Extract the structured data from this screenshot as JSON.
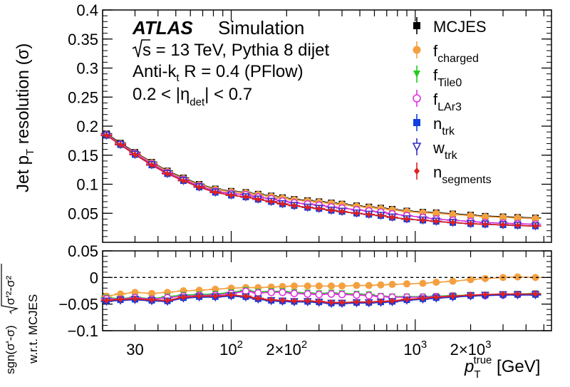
{
  "chart_data": [
    {
      "panel": "main",
      "type": "scatter",
      "xscale": "log",
      "xlim": [
        20,
        5500
      ],
      "ylim": [
        0.0,
        0.4
      ],
      "ylabel": "Jet p_T resolution (σ)",
      "yticks": [
        "0.4",
        "0.35",
        "0.3",
        "0.25",
        "0.2",
        "0.15",
        "0.1",
        "0.05"
      ],
      "yticks_vals": [
        0.4,
        0.35,
        0.3,
        0.25,
        0.2,
        0.15,
        0.1,
        0.05
      ],
      "x": [
        21,
        25,
        30,
        37,
        45,
        55,
        67,
        82,
        100,
        120,
        140,
        165,
        190,
        220,
        260,
        300,
        350,
        400,
        480,
        560,
        650,
        750,
        900,
        1100,
        1300,
        1600,
        2000,
        2400,
        3000,
        3600,
        4500
      ],
      "series": [
        {
          "name": "MCJES",
          "color": "#000000",
          "marker": "square",
          "values": [
            0.187,
            0.171,
            0.155,
            0.138,
            0.123,
            0.111,
            0.1,
            0.092,
            0.088,
            0.086,
            0.083,
            0.08,
            0.077,
            0.074,
            0.072,
            0.07,
            0.068,
            0.066,
            0.063,
            0.061,
            0.059,
            0.057,
            0.054,
            0.052,
            0.051,
            0.049,
            0.047,
            0.045,
            0.044,
            0.043,
            0.042
          ]
        },
        {
          "name": "f_charged",
          "color": "#f4a040",
          "marker": "circle",
          "values": [
            0.186,
            0.17,
            0.154,
            0.137,
            0.122,
            0.11,
            0.099,
            0.091,
            0.087,
            0.085,
            0.082,
            0.079,
            0.076,
            0.073,
            0.071,
            0.069,
            0.067,
            0.065,
            0.062,
            0.06,
            0.058,
            0.056,
            0.053,
            0.051,
            0.05,
            0.048,
            0.046,
            0.044,
            0.043,
            0.042,
            0.041
          ]
        },
        {
          "name": "f_Tile0",
          "color": "#22cc22",
          "marker": "triangle-down",
          "values": [
            0.185,
            0.169,
            0.153,
            0.135,
            0.12,
            0.108,
            0.097,
            0.088,
            0.084,
            0.082,
            0.078,
            0.075,
            0.071,
            0.068,
            0.066,
            0.064,
            0.061,
            0.059,
            0.056,
            0.054,
            0.052,
            0.049,
            0.046,
            0.043,
            0.04,
            0.038,
            0.036,
            0.034,
            0.033,
            0.032,
            0.031
          ]
        },
        {
          "name": "f_LAr3",
          "color": "#e030e0",
          "marker": "circle-open",
          "values": [
            0.185,
            0.169,
            0.153,
            0.135,
            0.12,
            0.108,
            0.097,
            0.088,
            0.084,
            0.082,
            0.078,
            0.075,
            0.071,
            0.068,
            0.066,
            0.064,
            0.061,
            0.059,
            0.056,
            0.054,
            0.052,
            0.049,
            0.046,
            0.043,
            0.04,
            0.038,
            0.036,
            0.034,
            0.033,
            0.032,
            0.031
          ]
        },
        {
          "name": "n_trk",
          "color": "#1040e0",
          "marker": "square",
          "values": [
            0.184,
            0.168,
            0.151,
            0.133,
            0.118,
            0.106,
            0.095,
            0.086,
            0.081,
            0.078,
            0.074,
            0.07,
            0.066,
            0.063,
            0.06,
            0.058,
            0.055,
            0.053,
            0.05,
            0.048,
            0.046,
            0.043,
            0.04,
            0.038,
            0.036,
            0.034,
            0.032,
            0.031,
            0.03,
            0.029,
            0.028
          ]
        },
        {
          "name": "w_trk",
          "color": "#3030c0",
          "marker": "triangle-down-open",
          "values": [
            0.184,
            0.168,
            0.151,
            0.133,
            0.118,
            0.106,
            0.095,
            0.086,
            0.081,
            0.078,
            0.074,
            0.07,
            0.066,
            0.063,
            0.06,
            0.058,
            0.055,
            0.053,
            0.05,
            0.048,
            0.046,
            0.043,
            0.04,
            0.038,
            0.036,
            0.034,
            0.032,
            0.031,
            0.03,
            0.029,
            0.028
          ]
        },
        {
          "name": "n_segments",
          "color": "#e02020",
          "marker": "diamond",
          "values": [
            0.184,
            0.168,
            0.151,
            0.133,
            0.118,
            0.106,
            0.095,
            0.086,
            0.081,
            0.078,
            0.074,
            0.07,
            0.066,
            0.063,
            0.06,
            0.058,
            0.055,
            0.053,
            0.05,
            0.048,
            0.046,
            0.043,
            0.04,
            0.038,
            0.036,
            0.034,
            0.032,
            0.031,
            0.03,
            0.029,
            0.028
          ]
        }
      ]
    },
    {
      "panel": "ratio",
      "type": "scatter",
      "xscale": "log",
      "xlim": [
        20,
        5500
      ],
      "ylim": [
        -0.1,
        0.05
      ],
      "ylabel_1": "sgn(σ'-σ)",
      "ylabel_2": "√(σ'²-σ²)",
      "ylabel_3": "w.r.t. MCJES",
      "yticks": [
        "0.05",
        "0",
        "−0.05",
        "−0.1"
      ],
      "yticks_vals": [
        0.05,
        0.0,
        -0.05,
        -0.1
      ],
      "xlabel": "p_T^true [GeV]",
      "xticks": [
        "30",
        "10²",
        "2×10²",
        "10³",
        "2×10³"
      ],
      "xticks_vals": [
        30,
        100,
        200,
        1000,
        2000
      ],
      "x": [
        21,
        25,
        30,
        37,
        45,
        55,
        67,
        82,
        100,
        120,
        140,
        165,
        190,
        220,
        260,
        300,
        350,
        400,
        480,
        560,
        650,
        750,
        900,
        1100,
        1300,
        1600,
        2000,
        2400,
        3000,
        3600,
        4500
      ],
      "series": [
        {
          "name": "f_charged",
          "color": "#f4a040",
          "marker": "circle",
          "values": [
            -0.035,
            -0.031,
            -0.028,
            -0.03,
            -0.028,
            -0.025,
            -0.024,
            -0.022,
            -0.02,
            -0.019,
            -0.019,
            -0.018,
            -0.017,
            -0.016,
            -0.016,
            -0.016,
            -0.016,
            -0.016,
            -0.015,
            -0.015,
            -0.014,
            -0.013,
            -0.012,
            -0.011,
            -0.009,
            -0.007,
            -0.004,
            -0.002,
            0.0,
            0.001,
            0.0
          ]
        },
        {
          "name": "f_Tile0",
          "color": "#22cc22",
          "marker": "triangle-down",
          "values": [
            -0.038,
            -0.04,
            -0.037,
            -0.04,
            -0.036,
            -0.033,
            -0.032,
            -0.031,
            -0.028,
            -0.024,
            -0.027,
            -0.026,
            -0.026,
            -0.028,
            -0.029,
            -0.03,
            -0.029,
            -0.03,
            -0.031,
            -0.032,
            -0.035,
            -0.036,
            -0.036,
            -0.036,
            -0.035,
            -0.034,
            -0.033,
            -0.033,
            -0.032,
            -0.031,
            -0.03
          ]
        },
        {
          "name": "f_LAr3",
          "color": "#e030e0",
          "marker": "circle-open",
          "values": [
            -0.04,
            -0.041,
            -0.038,
            -0.041,
            -0.038,
            -0.035,
            -0.034,
            -0.033,
            -0.03,
            -0.026,
            -0.029,
            -0.028,
            -0.028,
            -0.03,
            -0.031,
            -0.032,
            -0.031,
            -0.032,
            -0.033,
            -0.034,
            -0.036,
            -0.037,
            -0.037,
            -0.037,
            -0.036,
            -0.035,
            -0.034,
            -0.034,
            -0.033,
            -0.032,
            -0.031
          ]
        },
        {
          "name": "n_trk",
          "color": "#1040e0",
          "marker": "square",
          "values": [
            -0.044,
            -0.042,
            -0.041,
            -0.043,
            -0.044,
            -0.038,
            -0.036,
            -0.036,
            -0.034,
            -0.036,
            -0.04,
            -0.043,
            -0.044,
            -0.045,
            -0.045,
            -0.046,
            -0.048,
            -0.048,
            -0.047,
            -0.047,
            -0.046,
            -0.045,
            -0.042,
            -0.04,
            -0.038,
            -0.036,
            -0.034,
            -0.033,
            -0.032,
            -0.032,
            -0.032
          ]
        },
        {
          "name": "w_trk",
          "color": "#3030c0",
          "marker": "triangle-down-open",
          "values": [
            -0.045,
            -0.043,
            -0.042,
            -0.044,
            -0.045,
            -0.039,
            -0.037,
            -0.037,
            -0.035,
            -0.037,
            -0.041,
            -0.044,
            -0.045,
            -0.046,
            -0.046,
            -0.047,
            -0.049,
            -0.049,
            -0.048,
            -0.048,
            -0.047,
            -0.046,
            -0.043,
            -0.041,
            -0.039,
            -0.037,
            -0.035,
            -0.034,
            -0.033,
            -0.033,
            -0.033
          ]
        },
        {
          "name": "n_segments",
          "color": "#e02020",
          "marker": "diamond",
          "values": [
            -0.043,
            -0.041,
            -0.04,
            -0.042,
            -0.043,
            -0.037,
            -0.035,
            -0.035,
            -0.033,
            -0.035,
            -0.039,
            -0.042,
            -0.043,
            -0.044,
            -0.044,
            -0.045,
            -0.047,
            -0.047,
            -0.046,
            -0.046,
            -0.045,
            -0.044,
            -0.041,
            -0.039,
            -0.037,
            -0.035,
            -0.033,
            -0.032,
            -0.031,
            -0.031,
            -0.031
          ]
        }
      ]
    }
  ],
  "annotations": {
    "atlas": "ATLAS",
    "simulation": "Simulation",
    "energy_prefix": "s = 13 TeV, Pythia 8 dijet",
    "algo": "Anti-k",
    "algo_sub": "t",
    "algo_rest": " R = 0.4 (PFlow)",
    "eta_range_left": "0.2 < |η",
    "eta_sub": "det",
    "eta_range_right": "| < 0.7"
  },
  "legend": [
    {
      "main": "MCJES",
      "sub": ""
    },
    {
      "main": "f",
      "sub": "charged"
    },
    {
      "main": "f",
      "sub": "Tile0"
    },
    {
      "main": "f",
      "sub": "LAr3"
    },
    {
      "main": "n",
      "sub": "trk"
    },
    {
      "main": "w",
      "sub": "trk"
    },
    {
      "main": "n",
      "sub": "segments"
    }
  ],
  "axis_text": {
    "main_ylabel_main": "Jet p",
    "main_ylabel_sub": "T",
    "main_ylabel_rest": " resolution (σ)",
    "ratio_ylabel_top": "sgn(σ'-σ)",
    "ratio_ylabel_sqrt": "σ'²-σ²",
    "ratio_ylabel_bottom": "w.r.t. MCJES",
    "xlabel_main": "p",
    "xlabel_sub": "T",
    "xlabel_sup": "true",
    "xlabel_unit": " [GeV]",
    "xticks": [
      {
        "base": "30",
        "exp": ""
      },
      {
        "base": "10",
        "exp": "2"
      },
      {
        "base": "2×10",
        "exp": "2"
      },
      {
        "base": "10",
        "exp": "3"
      },
      {
        "base": "2×10",
        "exp": "3"
      }
    ]
  }
}
